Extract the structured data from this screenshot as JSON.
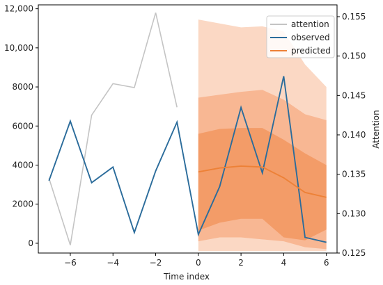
{
  "chart_data": {
    "type": "line",
    "xlabel": "Time index",
    "ylabel_left": "",
    "ylabel_right": "Attention",
    "xlim": [
      -7.5,
      6.5
    ],
    "ylim_left": [
      -500,
      12200
    ],
    "ylim_right": [
      0.125,
      0.1565
    ],
    "x_ticks": [
      -6,
      -4,
      -2,
      0,
      2,
      4,
      6
    ],
    "x_tick_labels": [
      "−6",
      "−4",
      "−2",
      "0",
      "2",
      "4",
      "6"
    ],
    "left_ticks": [
      0,
      2000,
      4000,
      6000,
      8000,
      10000,
      12000
    ],
    "left_tick_labels": [
      "0",
      "2000",
      "4000",
      "6000",
      "8000",
      "10,000",
      "12,000"
    ],
    "right_ticks": [
      0.125,
      0.13,
      0.135,
      0.14,
      0.145,
      0.15,
      0.155
    ],
    "right_tick_labels": [
      "0.125",
      "0.130",
      "0.135",
      "0.140",
      "0.145",
      "0.150",
      "0.155"
    ],
    "grid": false,
    "legend_position": "top-right",
    "legend": [
      {
        "label": "attention",
        "color": "#c4c4c4"
      },
      {
        "label": "observed",
        "color": "#2b6c9b"
      },
      {
        "label": "predicted",
        "color": "#ed8137"
      }
    ],
    "series": [
      {
        "name": "attention",
        "axis": "right",
        "color": "#c4c4c4",
        "x": [
          -7,
          -6,
          -5,
          -4,
          -3,
          -2,
          -1
        ],
        "values": [
          0.1345,
          0.126,
          0.1425,
          0.1465,
          0.146,
          0.1555,
          0.1435
        ]
      },
      {
        "name": "observed",
        "axis": "left",
        "color": "#2b6c9b",
        "x": [
          -7,
          -6,
          -5,
          -4,
          -3,
          -2,
          -1,
          0,
          1,
          2,
          3,
          4,
          5,
          6
        ],
        "values": [
          3200,
          6250,
          3100,
          3900,
          550,
          3700,
          6200,
          450,
          2900,
          6950,
          3600,
          8550,
          300,
          50
        ]
      },
      {
        "name": "predicted",
        "axis": "left",
        "color": "#ed8137",
        "x": [
          0,
          1,
          2,
          3,
          4,
          5,
          6
        ],
        "values": [
          3650,
          3850,
          3950,
          3900,
          3350,
          2600,
          2350
        ]
      }
    ],
    "prediction_bands": [
      {
        "x": [
          0,
          1,
          2,
          3,
          4,
          5,
          6
        ],
        "lower": [
          -400,
          -400,
          -400,
          -400,
          -400,
          -400,
          -400
        ],
        "upper": [
          11450,
          11250,
          11050,
          11100,
          10850,
          9150,
          8000
        ],
        "color": "#fbd8c4"
      },
      {
        "x": [
          0,
          1,
          2,
          3,
          4,
          5,
          6
        ],
        "lower": [
          100,
          300,
          300,
          200,
          100,
          -200,
          -300
        ],
        "upper": [
          7450,
          7600,
          7750,
          7850,
          7350,
          6600,
          6300
        ],
        "color": "#f8b793"
      },
      {
        "x": [
          0,
          1,
          2,
          3,
          4,
          5,
          6
        ],
        "lower": [
          650,
          1050,
          1250,
          1250,
          300,
          150,
          700
        ],
        "upper": [
          5600,
          5850,
          5900,
          5900,
          5300,
          4600,
          4000
        ],
        "color": "#f39c68"
      }
    ]
  }
}
